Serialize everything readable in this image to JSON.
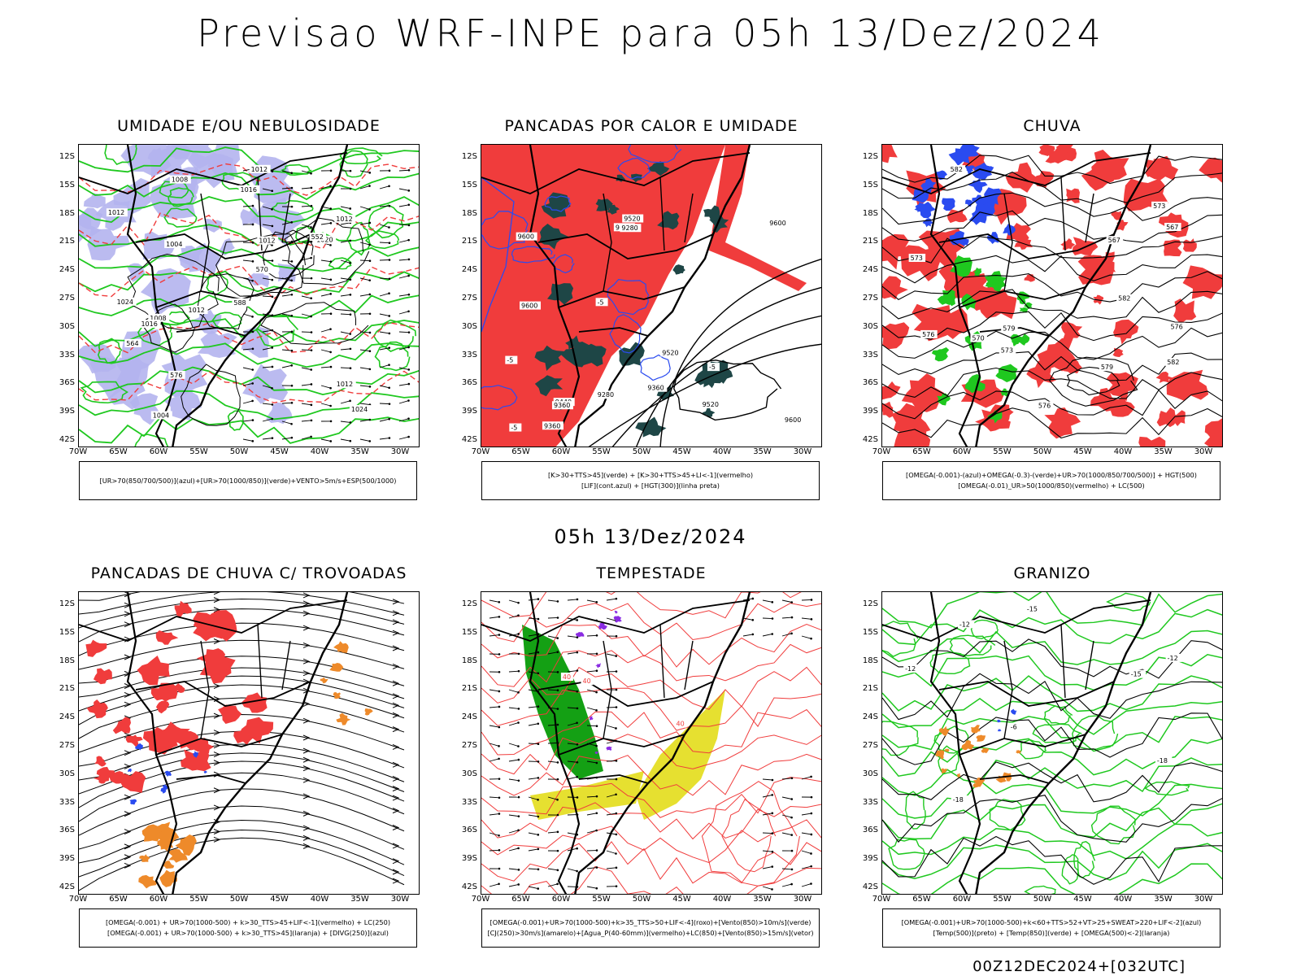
{
  "title": "Previsao WRF-INPE  para 05h 13/Dez/2024",
  "mid_title": "05h 13/Dez/2024",
  "footer": "00Z12DEC2024+[032UTC]",
  "lat_labels": [
    "12S",
    "15S",
    "18S",
    "21S",
    "24S",
    "27S",
    "30S",
    "33S",
    "36S",
    "39S",
    "42S"
  ],
  "lon_labels": [
    "70W",
    "65W",
    "60W",
    "55W",
    "50W",
    "45W",
    "40W",
    "35W",
    "30W"
  ],
  "colors": {
    "red": "#f03c3c",
    "green": "#1fc81f",
    "blue": "#2a4bf0",
    "lavender": "#b4b4ee",
    "darkteal": "#1e4646",
    "yellow": "#e6e030",
    "orange": "#ee8a2a",
    "darkgreen": "#14a014"
  },
  "panels": [
    {
      "title": "UMIDADE E/OU NEBULOSIDADE",
      "legend": [
        "[UR>70(850/700/500)](azul)+[UR>70(1000/850)](verde)+VENTO>5m/s+ESP(500/1000)"
      ],
      "contour_labels": [
        "1012",
        "1012",
        "1012",
        "1012",
        "1008",
        "1004",
        "1016",
        "1004",
        "1020",
        "1012",
        "1008",
        "1024",
        "1016",
        "1012",
        "1024",
        "576",
        "564",
        "552",
        "570",
        "588"
      ]
    },
    {
      "title": "PANCADAS POR CALOR E UMIDADE",
      "legend": [
        "[K>30+TTS>45](verde) + [K>30+TTS>45+LI<-1](vermelho)",
        "[LIF](cont.azul) + [HGT(300)](linha preta)"
      ],
      "contour_labels": [
        "9600",
        "9600",
        "9600",
        "9600",
        "9520",
        "9520",
        "9520",
        "9440",
        "9440",
        "9360",
        "9360",
        "9360",
        "9280",
        "9280",
        "-5",
        "-5",
        "-5",
        "-5"
      ]
    },
    {
      "title": "CHUVA",
      "legend": [
        "[OMEGA(-0.001)-(azul)+OMEGA(-0.3)-(verde)+UR>70(1000/850/700/500)] + HGT(500)",
        "[OMEGA(-0.01)_UR>50(1000/850)(vermelho) + LC(500)"
      ],
      "contour_labels": [
        "582",
        "582",
        "582",
        "576",
        "576",
        "579",
        "573",
        "573",
        "570",
        "567",
        "567",
        "573",
        "576",
        "579"
      ]
    },
    {
      "title": "PANCADAS DE CHUVA C/ TROVOADAS",
      "legend": [
        "[OMEGA(-0.001) + UR>70(1000-500) + k>30_TTS>45+LIF<-1](vermelho) + LC(250)",
        "[OMEGA(-0.001) + UR>70(1000-500) + k>30_TTS>45](laranja) + [DIVG(250)](azul)"
      ],
      "contour_labels": []
    },
    {
      "title": "TEMPESTADE",
      "legend": [
        "[OMEGA(-0.001)+UR>70(1000-500)+k>35_TTS>50+LIF<-4](roxo)+[Vento(850)>10m/s](verde)",
        "[CJ(250)>30m/s](amarelo)+[Agua_P(40-60mm)](vermelho)+LC(850)+[Vento(850)>15m/s](vetor)"
      ],
      "contour_labels": [
        "40",
        "40",
        "40"
      ]
    },
    {
      "title": "GRANIZO",
      "legend": [
        "[OMEGA(-0.001)+UR>70(1000-500)+k<60+TTS>52+VT>25+SWEAT>220+LIF<-2](azul)",
        "[Temp(500)](preto) + [Temp(850)](verde) + [OMEGA(500)<-2](laranja)"
      ],
      "contour_labels": [
        "-6",
        "-12",
        "-12",
        "-18",
        "-12",
        "-15",
        "-18",
        "-15"
      ]
    }
  ]
}
